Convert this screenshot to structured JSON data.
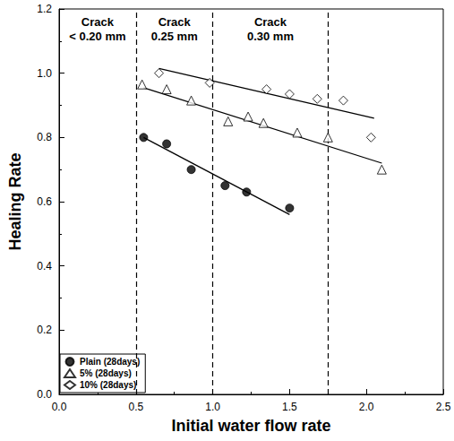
{
  "chart_data": {
    "type": "scatter",
    "x_label": "Initial water flow rate",
    "y_label": "Healing Rate",
    "xlim": [
      0,
      2.5
    ],
    "xticks": [
      {
        "value": 0,
        "label": "0.0"
      },
      0.5,
      {
        "value": 1,
        "label": "1.0"
      },
      1.5,
      {
        "value": 2,
        "label": "2.0"
      },
      2.5
    ],
    "ylim": [
      0,
      1.2
    ],
    "yticks": [
      {
        "value": 0,
        "label": "0.0"
      },
      0.2,
      0.4,
      0.6,
      0.8,
      {
        "value": 1,
        "label": "1.0"
      },
      1.2
    ],
    "grid": false,
    "legend": "lower left",
    "dashed_lines": [
      0.5,
      1.0,
      1.75
    ],
    "regions": [
      {
        "x": [
          0,
          0.5
        ],
        "label": "Crack\n< 0.20 mm"
      },
      {
        "x": [
          0.5,
          1.0
        ],
        "label": "Crack\n0.25 mm"
      },
      {
        "x": [
          1.0,
          1.75
        ],
        "label": "Crack\n0.30 mm"
      }
    ],
    "series": [
      {
        "name": "Plain (28days)",
        "color": "#000000",
        "marker": "circle",
        "x": [
          0.55,
          0.7,
          0.86,
          1.08,
          1.22,
          1.5
        ],
        "values": [
          0.8,
          0.78,
          0.7,
          0.65,
          0.63,
          0.58
        ],
        "trend": {
          "x": [
            0.55,
            1.5
          ],
          "values": [
            0.8,
            0.56
          ]
        }
      },
      {
        "name": "5% (28days)",
        "color": "#000000",
        "marker": "triangle-open",
        "x": [
          0.54,
          0.7,
          0.86,
          1.1,
          1.23,
          1.33,
          1.55,
          1.75,
          2.1
        ],
        "values": [
          0.965,
          0.95,
          0.915,
          0.85,
          0.865,
          0.845,
          0.815,
          0.8,
          0.7
        ],
        "trend": {
          "x": [
            0.55,
            2.1
          ],
          "values": [
            0.955,
            0.72
          ]
        }
      },
      {
        "name": "10% (28days)",
        "color": "#000000",
        "marker": "diamond-open",
        "x": [
          0.65,
          0.98,
          1.35,
          1.5,
          1.68,
          1.85,
          2.03
        ],
        "values": [
          1.0,
          0.97,
          0.95,
          0.935,
          0.92,
          0.915,
          0.8
        ],
        "trend": {
          "x": [
            0.65,
            2.05
          ],
          "values": [
            1.015,
            0.86
          ]
        }
      }
    ]
  }
}
